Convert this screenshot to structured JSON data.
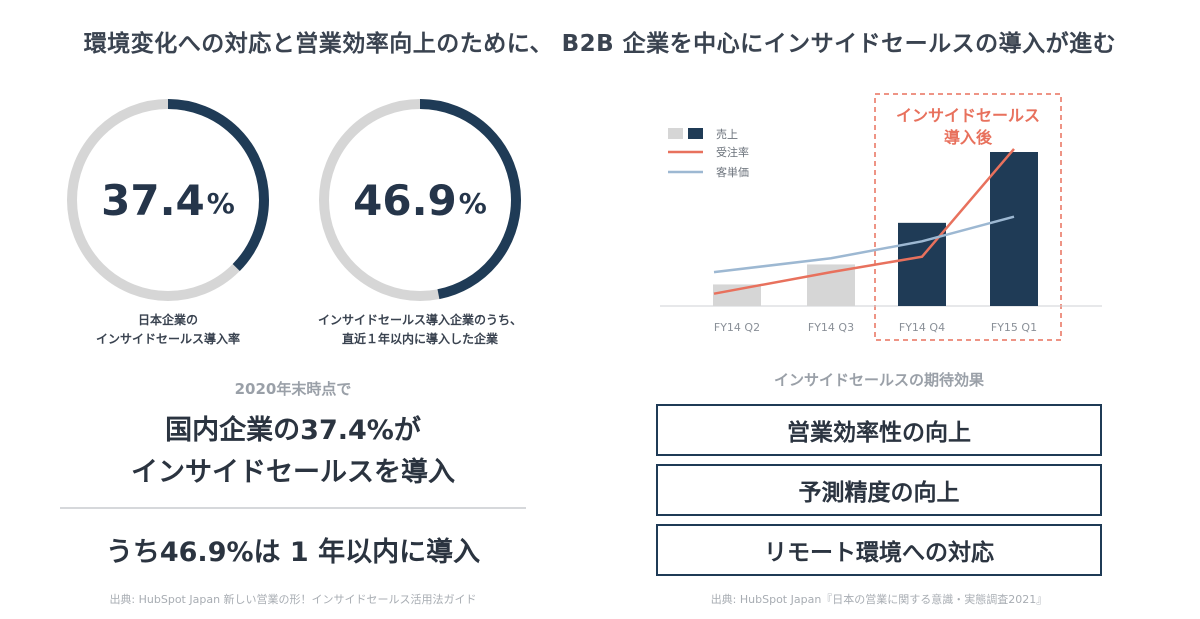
{
  "headline": "環境変化への対応と営業効率向上のために、 B2B 企業を中心にインサイドセールスの導入が進む",
  "rings": [
    {
      "number": "37.4",
      "unit": "%",
      "fraction": 0.374,
      "caption_line1": "日本企業の",
      "caption_line2": "インサイドセールス導入率"
    },
    {
      "number": "46.9",
      "unit": "%",
      "fraction": 0.469,
      "caption_line1": "インサイドセールス導入企業のうち、",
      "caption_line2": "直近１年以内に導入した企業"
    }
  ],
  "summary": {
    "as_of": "2020年末時点で",
    "line1": "国内企業の37.4%が",
    "line2": "インサイドセールスを導入",
    "line3": "うち46.9%は 1 年以内に導入",
    "source": "出典: HubSpot Japan 新しい営業の形！インサイドセールス活用法ガイド"
  },
  "colors": {
    "navy": "#1f3b56",
    "light_gray": "#d6d6d6",
    "red": "#e8715d",
    "blue": "#9db8d2"
  },
  "chart_data": {
    "type": "bar",
    "categories": [
      "FY14 Q2",
      "FY14 Q3",
      "FY14 Q4",
      "FY15 Q1"
    ],
    "ylim": [
      0,
      100
    ],
    "series": [
      {
        "name": "売上",
        "type": "bar",
        "values": [
          14,
          27,
          54,
          100
        ],
        "colors": [
          "#d6d6d6",
          "#d6d6d6",
          "#1f3b56",
          "#1f3b56"
        ]
      },
      {
        "name": "受注率",
        "type": "line",
        "values": [
          8,
          22,
          32,
          102
        ],
        "color": "#e8715d"
      },
      {
        "name": "客単価",
        "type": "line",
        "values": [
          22,
          31,
          42,
          58
        ],
        "color": "#9db8d2"
      }
    ],
    "legend": "top-left",
    "highlight": {
      "label_line1": "インサイドセールス",
      "label_line2": "導入後",
      "from_category": "FY14 Q4",
      "to_category": "FY15 Q1"
    }
  },
  "effects": {
    "title": "インサイドセールスの期待効果",
    "items": [
      "営業効率性の向上",
      "予測精度の向上",
      "リモート環境への対応"
    ],
    "source": "出典: HubSpot  Japan『日本の営業に関する意識・実態調査2021』"
  }
}
